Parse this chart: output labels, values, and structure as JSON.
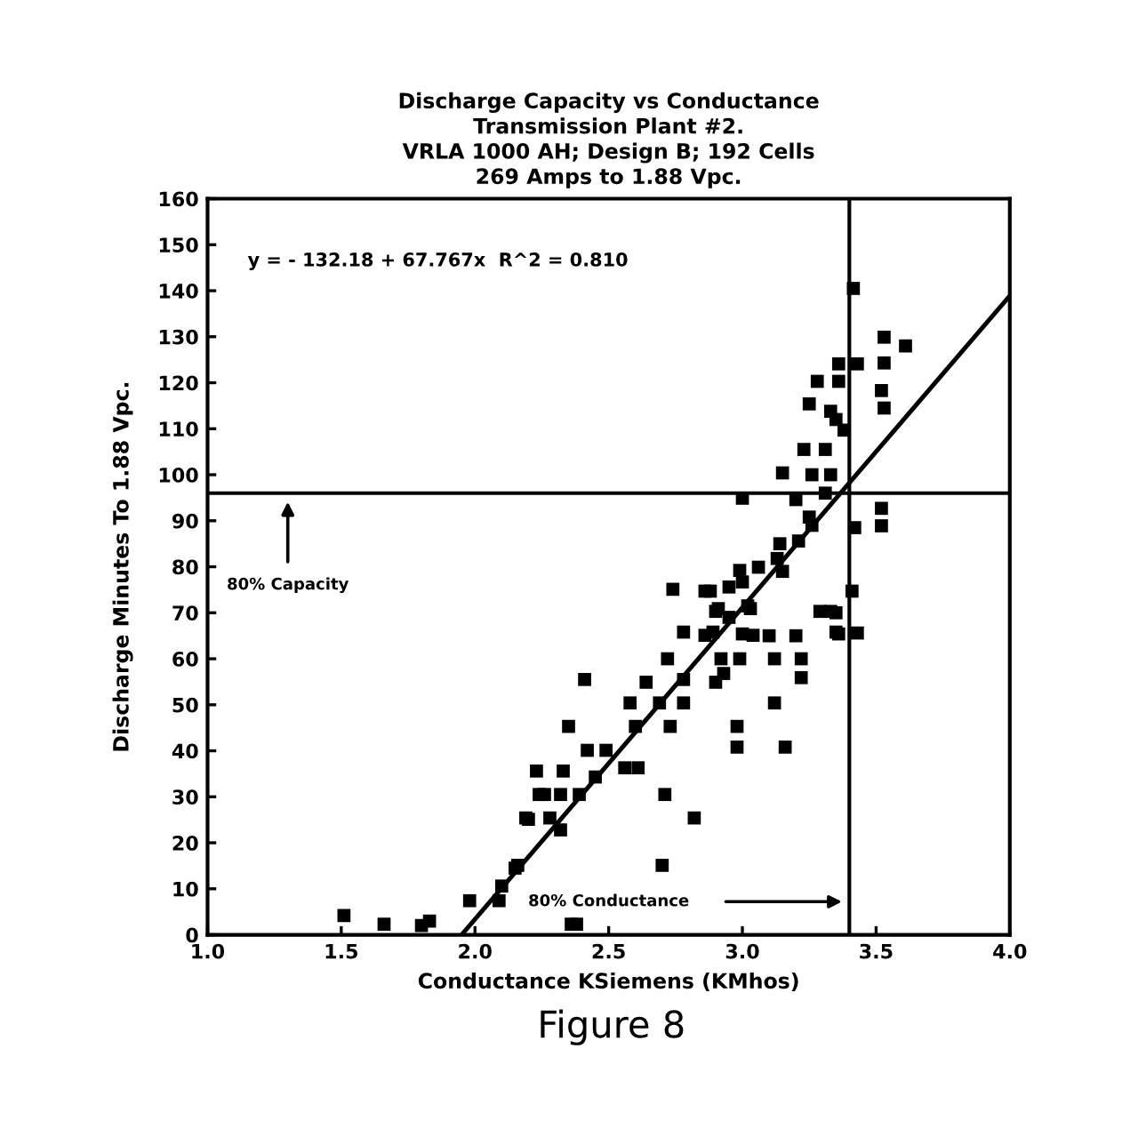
{
  "chart_data": {
    "type": "scatter",
    "title": "Discharge Capacity vs Conductance\nTransmission Plant #2.\nVRLA 1000 AH; Design B; 192 Cells\n269 Amps to 1.88 Vpc.",
    "xlabel": "Conductance KSiemens (KMhos)",
    "ylabel": "Discharge Minutes To 1.88 Vpc.",
    "xlim": [
      1.0,
      4.0
    ],
    "ylim": [
      0,
      160
    ],
    "xticks": [
      {
        "value": 1.0,
        "label": "1.0"
      },
      {
        "value": 1.5,
        "label": "1.5"
      },
      {
        "value": 2.0,
        "label": "2.0"
      },
      {
        "value": 2.5,
        "label": "2.5"
      },
      {
        "value": 3.0,
        "label": "3.0"
      },
      {
        "value": 3.5,
        "label": "3.5"
      },
      {
        "value": 4.0,
        "label": "4.0"
      }
    ],
    "yticks": [
      0,
      10,
      20,
      30,
      40,
      50,
      60,
      70,
      80,
      90,
      100,
      110,
      120,
      130,
      140,
      150,
      160
    ],
    "grid": false,
    "series": [
      {
        "marker": "square",
        "color": "#000000",
        "x": [
          3.415,
          3.53,
          3.61,
          3.36,
          3.43,
          3.53,
          3.28,
          3.36,
          3.52,
          3.53,
          3.25,
          3.33,
          3.38,
          3.35,
          3.23,
          3.31,
          3.15,
          3.26,
          3.33,
          3.0,
          3.2,
          3.31,
          3.52,
          3.52,
          3.42,
          3.25,
          3.26,
          3.14,
          3.21,
          3.06,
          3.15,
          2.99,
          2.74,
          2.88,
          2.95,
          2.91,
          3.03,
          3.29,
          3.35,
          3.41,
          2.78,
          2.89,
          3.0,
          3.1,
          3.2,
          3.36,
          3.43,
          2.86,
          3.0,
          3.13,
          2.9,
          2.95,
          3.02,
          3.33,
          3.35,
          3.04,
          2.86,
          2.72,
          2.92,
          2.99,
          3.12,
          3.22,
          2.93,
          2.78,
          2.9,
          3.22,
          2.41,
          2.64,
          2.58,
          2.69,
          2.78,
          3.12,
          2.35,
          2.6,
          2.73,
          2.98,
          2.98,
          3.16,
          2.42,
          2.49,
          2.56,
          2.61,
          2.23,
          2.33,
          2.45,
          2.24,
          2.32,
          2.39,
          2.71,
          2.19,
          2.28,
          2.32,
          2.82,
          2.16,
          2.7,
          2.1,
          1.98,
          2.09,
          2.36,
          1.51,
          1.66,
          1.83,
          1.8,
          2.38,
          2.15,
          2.2,
          2.26
        ],
        "values": [
          140.5,
          129.9,
          128,
          124.1,
          124.1,
          124.3,
          120.3,
          120.3,
          118.3,
          114.5,
          115.4,
          113.8,
          109.7,
          112,
          105.5,
          105.5,
          100.4,
          100,
          100,
          94.9,
          94.6,
          96,
          92.7,
          88.9,
          88.5,
          90.8,
          89,
          85,
          85.6,
          79.9,
          79,
          79.2,
          75.1,
          74.7,
          75.6,
          70.9,
          70.9,
          70.3,
          70,
          74.7,
          65.8,
          65.8,
          65.4,
          65,
          65,
          65.4,
          65.6,
          74.7,
          76.7,
          81.8,
          70.3,
          69,
          71.5,
          70.3,
          65.8,
          65.1,
          65.1,
          60,
          60,
          60,
          60,
          60,
          56.8,
          55.5,
          54.9,
          55.9,
          55.5,
          54.9,
          50.4,
          50.4,
          50.4,
          50.4,
          45.3,
          45.3,
          45.3,
          45.3,
          40.8,
          40.8,
          40.1,
          40.1,
          36.3,
          36.3,
          35.6,
          35.6,
          34.3,
          30.5,
          30.5,
          30.5,
          30.5,
          25.4,
          25.4,
          22.8,
          25.4,
          15.1,
          15.1,
          10.6,
          7.4,
          7.4,
          2.3,
          4.2,
          2.3,
          3,
          2,
          2.3,
          14.5,
          25.1,
          30.5
        ]
      },
      {
        "type": "line",
        "marker": "none",
        "color": "#000000",
        "x": [
          1.95,
          4.0
        ],
        "values": [
          0,
          138.9
        ]
      }
    ],
    "ref_lines": [
      {
        "axis": "x",
        "value": 3.4,
        "color": "#000000"
      },
      {
        "axis": "y",
        "value": 96,
        "color": "#000000"
      }
    ],
    "annotations": [
      "y = - 132.18 + 67.767x  R^2 = 0.810",
      "80% Capacity",
      "80% Conductance",
      "Figure 8"
    ]
  }
}
